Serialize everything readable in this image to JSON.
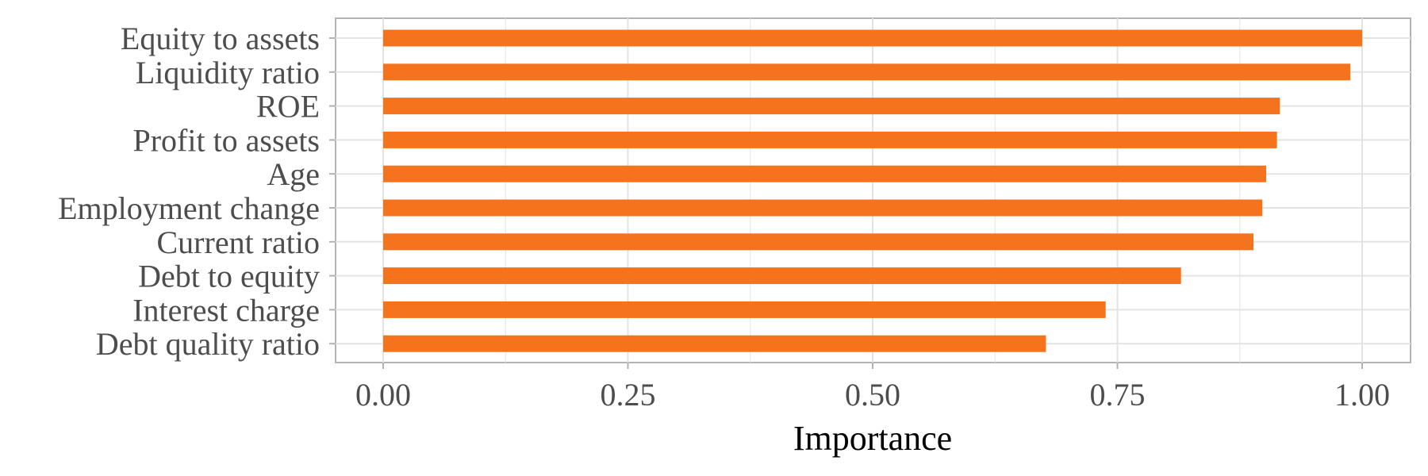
{
  "chart_data": {
    "type": "bar",
    "orientation": "horizontal",
    "title": "",
    "xlabel": "Importance",
    "ylabel": "",
    "xlim": [
      0,
      1
    ],
    "x_ticks": [
      0.0,
      0.25,
      0.5,
      0.75,
      1.0
    ],
    "x_tick_labels": [
      "0.00",
      "0.25",
      "0.50",
      "0.75",
      "1.00"
    ],
    "categories": [
      "Equity to assets",
      "Liquidity ratio",
      "ROE",
      "Profit to assets",
      "Age",
      "Employment change",
      "Current ratio",
      "Debt to equity",
      "Interest charge",
      "Debt quality ratio"
    ],
    "values": [
      1.0,
      0.988,
      0.916,
      0.913,
      0.902,
      0.898,
      0.889,
      0.815,
      0.738,
      0.677
    ],
    "grid": true,
    "legend": "none",
    "bar_color": "#f5731c",
    "grid_color": "#e3e3e3",
    "panel_border_color": "#b3b3b3"
  }
}
